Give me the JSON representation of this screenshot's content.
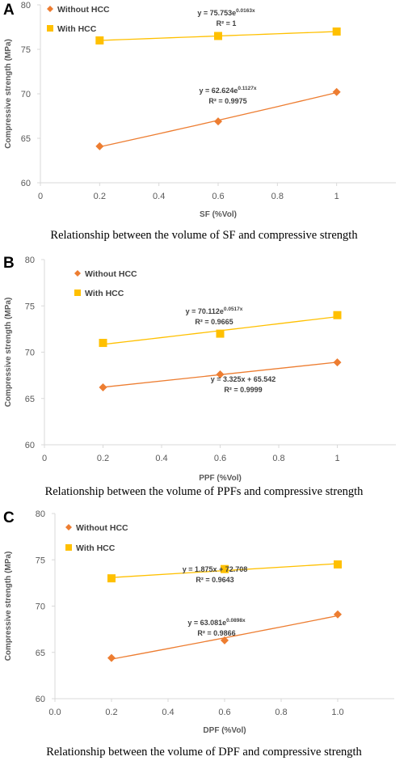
{
  "colors": {
    "without_hcc": "#ED7D31",
    "with_hcc": "#FFC000",
    "axis": "#D9D9D9",
    "text": "#595959"
  },
  "chart_data": [
    {
      "panel": "A",
      "type": "scatter",
      "xlabel": "SF (%Vol)",
      "ylabel": "Compressive strength (MPa)",
      "xlim": [
        0,
        1.2
      ],
      "ylim": [
        60,
        80
      ],
      "x_ticks": [
        "0",
        "0.2",
        "0.4",
        "0.6",
        "0.8",
        "1"
      ],
      "y_ticks": [
        "60",
        "65",
        "70",
        "75",
        "80"
      ],
      "caption": "Relationship between the volume of SF and compressive strength",
      "legend": "top-left",
      "series": [
        {
          "name": "Without HCC",
          "marker": "diamond",
          "x": [
            0.2,
            0.6,
            1.0
          ],
          "y": [
            64.1,
            66.9,
            70.2
          ],
          "trendline": "exponential",
          "equation_base": "y = 62.624e",
          "equation_exp": "0.1127x",
          "r2": "R² = 0.9975"
        },
        {
          "name": "With HCC",
          "marker": "square",
          "x": [
            0.2,
            0.6,
            1.0
          ],
          "y": [
            76.0,
            76.5,
            77.0
          ],
          "trendline": "exponential",
          "equation_base": "y = 75.753e",
          "equation_exp": "0.0163x",
          "r2": "R² = 1"
        }
      ]
    },
    {
      "panel": "B",
      "type": "scatter",
      "xlabel": "PPF (%Vol)",
      "ylabel": "Compressive strength (MPa)",
      "xlim": [
        0,
        1.2
      ],
      "ylim": [
        60,
        80
      ],
      "x_ticks": [
        "0",
        "0.2",
        "0.4",
        "0.6",
        "0.8",
        "1"
      ],
      "y_ticks": [
        "60",
        "65",
        "70",
        "75",
        "80"
      ],
      "caption": "Relationship between the volume of PPFs and compressive strength",
      "legend": "top-left",
      "series": [
        {
          "name": "Without HCC",
          "marker": "diamond",
          "x": [
            0.2,
            0.6,
            1.0
          ],
          "y": [
            66.2,
            67.6,
            68.9
          ],
          "trendline": "linear",
          "equation_base": "y = 3.325x + 65.542",
          "equation_exp": "",
          "r2": "R² = 0.9999"
        },
        {
          "name": "With HCC",
          "marker": "square",
          "x": [
            0.2,
            0.6,
            1.0
          ],
          "y": [
            71.0,
            72.0,
            74.0
          ],
          "trendline": "exponential",
          "equation_base": "y = 70.112e",
          "equation_exp": "0.0517x",
          "r2": "R² = 0.9665"
        }
      ]
    },
    {
      "panel": "C",
      "type": "scatter",
      "xlabel": "DPF (%Vol)",
      "ylabel": "Compressive strength (MPa)",
      "xlim": [
        0,
        1.2
      ],
      "ylim": [
        60,
        80
      ],
      "x_ticks": [
        "0.0",
        "0.2",
        "0.4",
        "0.6",
        "0.8",
        "1.0"
      ],
      "y_ticks": [
        "60",
        "65",
        "70",
        "75",
        "80"
      ],
      "caption": "Relationship between the volume of DPF and compressive strength",
      "legend": "top-left",
      "series": [
        {
          "name": "Without HCC",
          "marker": "diamond",
          "x": [
            0.2,
            0.6,
            1.0
          ],
          "y": [
            64.4,
            66.3,
            69.1
          ],
          "trendline": "exponential",
          "equation_base": "y = 63.081e",
          "equation_exp": "0.0898x",
          "r2": "R² = 0.9866"
        },
        {
          "name": "With HCC",
          "marker": "square",
          "x": [
            0.2,
            0.6,
            1.0
          ],
          "y": [
            73.0,
            74.0,
            74.5
          ],
          "trendline": "linear",
          "equation_base": "y = 1.875x + 72.708",
          "equation_exp": "",
          "r2": "R² = 0.9643"
        }
      ]
    }
  ]
}
